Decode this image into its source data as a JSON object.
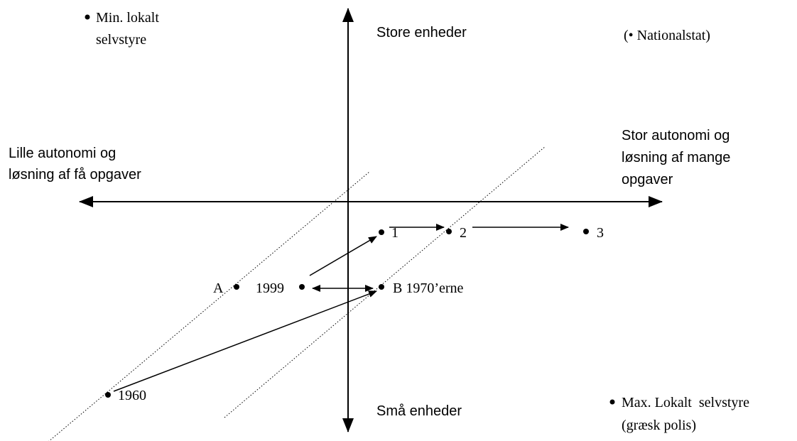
{
  "axes": {
    "top": "Store enheder",
    "bottom": "Små enheder",
    "left": [
      "Lille autonomi og",
      "løsning af få opgaver"
    ],
    "right": [
      "Stor autonomi og",
      "løsning af mange",
      "opgaver"
    ]
  },
  "corners": {
    "top_left": [
      "Min. lokalt",
      "selvstyre"
    ],
    "top_right": "(• Nationalstat)",
    "bottom_right": [
      "Max. Lokalt  selvstyre",
      "(græsk polis)"
    ]
  },
  "points": {
    "p1": "1",
    "p2": "2",
    "p3": "3",
    "a": "A",
    "y1999": "1999",
    "b": "B 1970’erne",
    "y1960": "1960"
  }
}
